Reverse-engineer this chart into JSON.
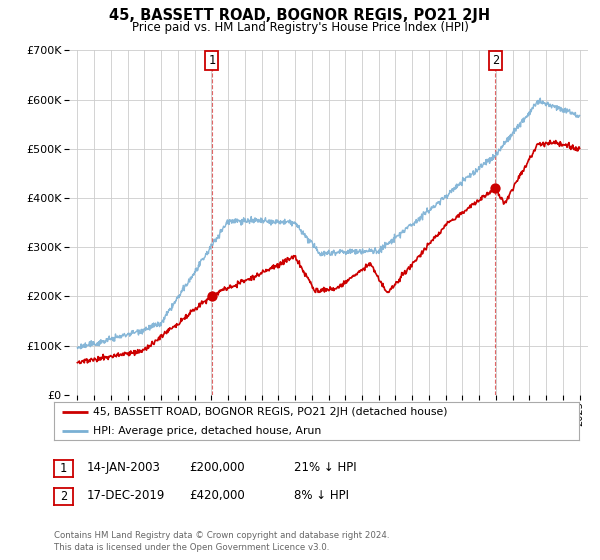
{
  "title": "45, BASSETT ROAD, BOGNOR REGIS, PO21 2JH",
  "subtitle": "Price paid vs. HM Land Registry's House Price Index (HPI)",
  "legend_line1": "45, BASSETT ROAD, BOGNOR REGIS, PO21 2JH (detached house)",
  "legend_line2": "HPI: Average price, detached house, Arun",
  "sale1_date": "14-JAN-2003",
  "sale1_price": "£200,000",
  "sale1_hpi": "21% ↓ HPI",
  "sale2_date": "17-DEC-2019",
  "sale2_price": "£420,000",
  "sale2_hpi": "8% ↓ HPI",
  "footer1": "Contains HM Land Registry data © Crown copyright and database right 2024.",
  "footer2": "This data is licensed under the Open Government Licence v3.0.",
  "sale1_x": 2003.04,
  "sale1_y": 200000,
  "sale2_x": 2019.96,
  "sale2_y": 420000,
  "price_color": "#cc0000",
  "hpi_color": "#7ab0d4",
  "sale_dot_color": "#cc0000",
  "vline_color": "#cc0000",
  "background_color": "#ffffff",
  "grid_color": "#cccccc",
  "ylim": [
    0,
    700000
  ],
  "xlim_start": 1994.5,
  "xlim_end": 2025.5,
  "noise_seed": 42
}
